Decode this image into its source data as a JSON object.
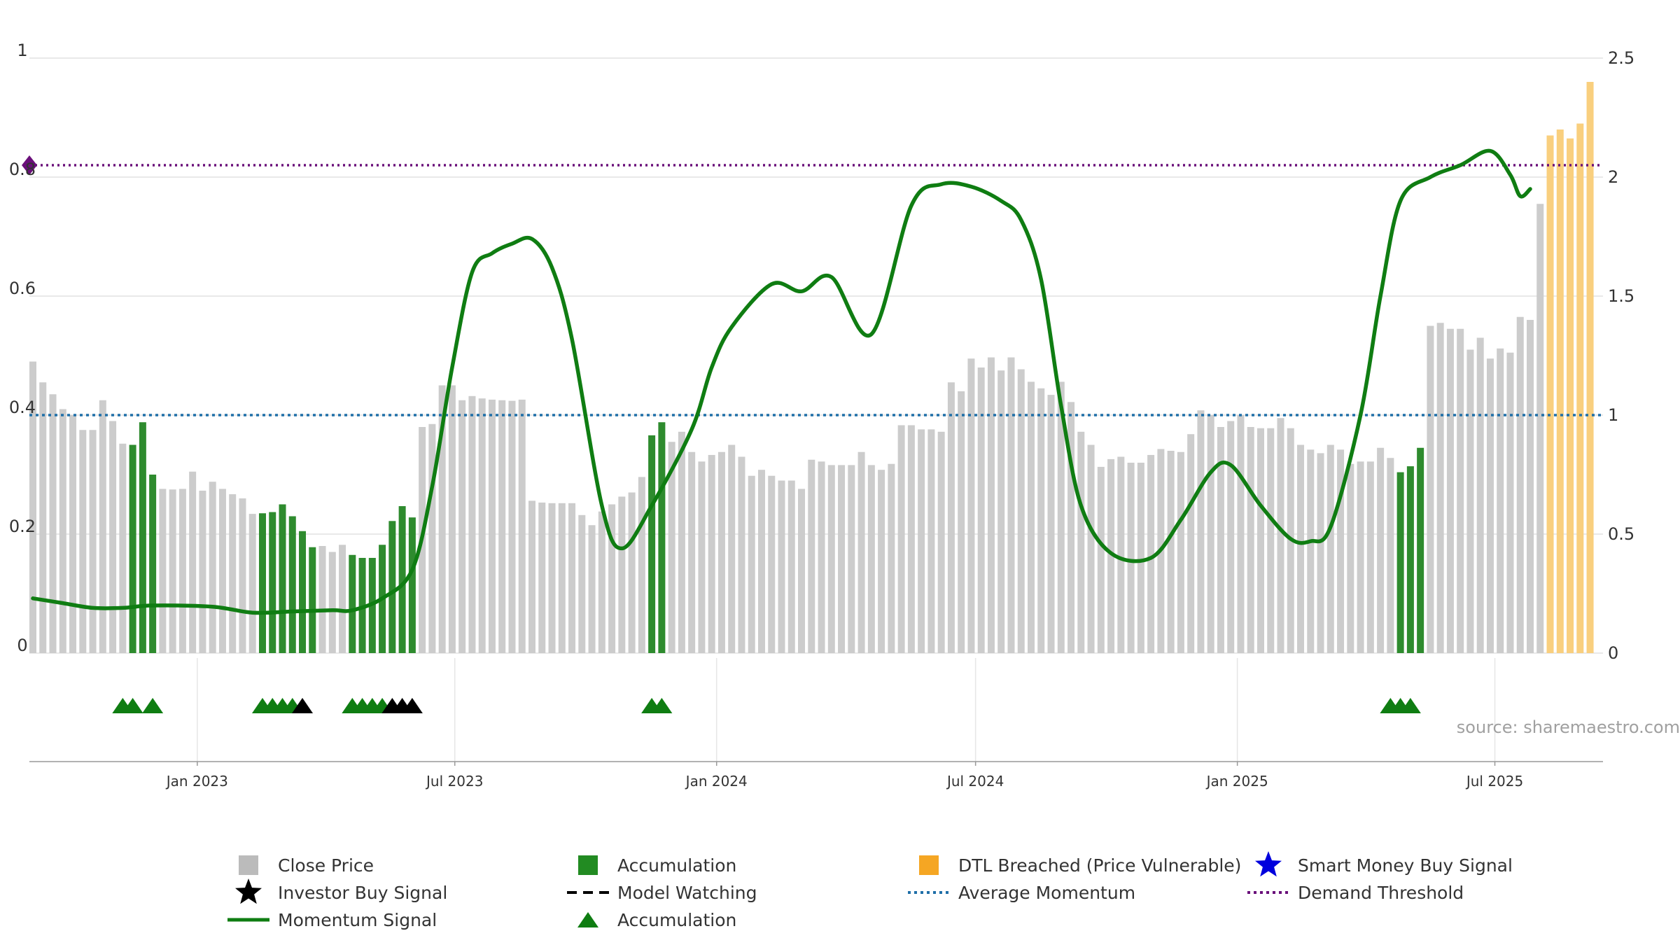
{
  "chart_data": {
    "type": "bar",
    "left_axis": {
      "ylim": [
        0,
        1
      ],
      "ticks": [
        "0",
        "0.2",
        "0.4",
        "0.6",
        "0.8",
        "1"
      ],
      "tick_values": [
        0,
        0.2,
        0.4,
        0.6,
        0.8,
        1.0
      ]
    },
    "right_axis": {
      "ylim": [
        0,
        2.5
      ],
      "ticks": [
        "0",
        "0.5",
        "1",
        "1.5",
        "2",
        "2.5"
      ],
      "tick_values": [
        0,
        0.5,
        1.0,
        1.5,
        2.0,
        2.5
      ]
    },
    "x_axis": {
      "range": [
        "2022-09-05",
        "2025-09-15"
      ],
      "ticks": [
        {
          "date": "2023-01-01",
          "label": "Jan 2023"
        },
        {
          "date": "2023-07-01",
          "label": "Jul 2023"
        },
        {
          "date": "2024-01-01",
          "label": "Jan 2024"
        },
        {
          "date": "2024-07-01",
          "label": "Jul 2024"
        },
        {
          "date": "2025-01-01",
          "label": "Jan 2025"
        },
        {
          "date": "2025-07-01",
          "label": "Jul 2025"
        }
      ]
    },
    "grid": true,
    "series": [
      {
        "name": "Close Price",
        "start_date": "2022-09-05",
        "interval_days": 7,
        "values": [
          0.49,
          0.455,
          0.435,
          0.41,
          0.4,
          0.375,
          0.375,
          0.425,
          0.39,
          0.352,
          0.35,
          0.388,
          0.3,
          0.276,
          0.275,
          0.276,
          0.305,
          0.273,
          0.288,
          0.276,
          0.267,
          0.26,
          0.234,
          0.235,
          0.237,
          0.25,
          0.23,
          0.205,
          0.178,
          0.18,
          0.17,
          0.182,
          0.165,
          0.16,
          0.16,
          0.182,
          0.222,
          0.247,
          0.228,
          0.38,
          0.385,
          0.45,
          0.45,
          0.425,
          0.432,
          0.428,
          0.426,
          0.425,
          0.424,
          0.426,
          0.256,
          0.253,
          0.252,
          0.252,
          0.252,
          0.232,
          0.215,
          0.238,
          0.25,
          0.263,
          0.27,
          0.296,
          0.366,
          0.388,
          0.355,
          0.372,
          0.338,
          0.322,
          0.333,
          0.338,
          0.35,
          0.33,
          0.298,
          0.308,
          0.298,
          0.29,
          0.29,
          0.276,
          0.325,
          0.322,
          0.316,
          0.316,
          0.316,
          0.338,
          0.316,
          0.308,
          0.318,
          0.383,
          0.383,
          0.376,
          0.376,
          0.372,
          0.455,
          0.44,
          0.495,
          0.48,
          0.497,
          0.475,
          0.497,
          0.477,
          0.456,
          0.445,
          0.434,
          0.456,
          0.422,
          0.372,
          0.35,
          0.313,
          0.326,
          0.33,
          0.32,
          0.32,
          0.333,
          0.343,
          0.34,
          0.338,
          0.368,
          0.408,
          0.4,
          0.38,
          0.39,
          0.4,
          0.38,
          0.378,
          0.378,
          0.395,
          0.378,
          0.35,
          0.342,
          0.336,
          0.35,
          0.342,
          0.318,
          0.322,
          0.322,
          0.345,
          0.328,
          0.304,
          0.314,
          0.345,
          0.55,
          0.555,
          0.545,
          0.545,
          0.51,
          0.53,
          0.495,
          0.512,
          0.505,
          0.565,
          0.56,
          0.755,
          0.87,
          0.88,
          0.865,
          0.89,
          0.96
        ],
        "accumulation": [
          10,
          11,
          12,
          23,
          24,
          25,
          26,
          27,
          28,
          32,
          33,
          34,
          35,
          36,
          37,
          38,
          62,
          63,
          137,
          138,
          139
        ],
        "dtl_breached": [
          152,
          153,
          154,
          155,
          156,
          157
        ]
      },
      {
        "name": "Momentum Signal",
        "axis": "right",
        "points": [
          [
            0,
            0.23
          ],
          [
            3,
            0.21
          ],
          [
            6,
            0.19
          ],
          [
            9,
            0.19
          ],
          [
            12,
            0.2
          ],
          [
            18,
            0.195
          ],
          [
            22,
            0.17
          ],
          [
            26,
            0.175
          ],
          [
            30,
            0.18
          ],
          [
            32,
            0.18
          ],
          [
            35,
            0.23
          ],
          [
            38,
            0.35
          ],
          [
            40,
            0.7
          ],
          [
            42,
            1.2
          ],
          [
            44,
            1.6
          ],
          [
            46,
            1.68
          ],
          [
            48,
            1.72
          ],
          [
            50,
            1.74
          ],
          [
            52,
            1.62
          ],
          [
            54,
            1.32
          ],
          [
            57,
            0.62
          ],
          [
            59,
            0.44
          ],
          [
            62,
            0.62
          ],
          [
            66,
            0.94
          ],
          [
            68,
            1.2
          ],
          [
            70,
            1.37
          ],
          [
            74,
            1.55
          ],
          [
            77,
            1.52
          ],
          [
            80,
            1.58
          ],
          [
            84,
            1.34
          ],
          [
            88,
            1.88
          ],
          [
            91,
            1.97
          ],
          [
            94,
            1.96
          ],
          [
            97,
            1.9
          ],
          [
            99,
            1.82
          ],
          [
            101,
            1.57
          ],
          [
            103,
            1.04
          ],
          [
            105,
            0.62
          ],
          [
            108,
            0.42
          ],
          [
            112,
            0.4
          ],
          [
            115,
            0.56
          ],
          [
            118,
            0.76
          ],
          [
            120,
            0.79
          ],
          [
            123,
            0.62
          ],
          [
            126,
            0.48
          ],
          [
            128,
            0.47
          ],
          [
            130,
            0.53
          ],
          [
            133,
            1.0
          ],
          [
            135,
            1.5
          ],
          [
            137,
            1.9
          ],
          [
            140,
            2.0
          ],
          [
            143,
            2.05
          ],
          [
            146,
            2.11
          ],
          [
            148,
            2.01
          ],
          [
            149,
            1.92
          ],
          [
            150,
            1.95
          ]
        ]
      },
      {
        "name": "Average Momentum",
        "axis": "right",
        "value": 1.0
      },
      {
        "name": "Demand Threshold",
        "axis": "left",
        "value": 0.82
      }
    ],
    "markers": {
      "accumulation_triangles": [
        9,
        10,
        12,
        23,
        24,
        25,
        26,
        32,
        33,
        34,
        35,
        62,
        63,
        136,
        137,
        138
      ],
      "investor_buy_stars": [
        27,
        36,
        37,
        38
      ]
    },
    "source_text": "source: sharemaestro.com",
    "legend_position": "bottom",
    "legend": [
      {
        "label": "Close Price",
        "symbol": "square",
        "color": "#bbbbbb"
      },
      {
        "label": "Accumulation",
        "symbol": "square",
        "color": "#228b22"
      },
      {
        "label": "DTL Breached (Price Vulnerable)",
        "symbol": "square",
        "color": "#f5a623"
      },
      {
        "label": "Smart Money Buy Signal",
        "symbol": "star",
        "color": "#0000dd"
      },
      {
        "label": "Investor Buy Signal",
        "symbol": "star",
        "color": "#000000"
      },
      {
        "label": "Model Watching",
        "symbol": "dash",
        "color": "#000000"
      },
      {
        "label": "Average Momentum",
        "symbol": "dotted-line",
        "color": "#1f6fa8"
      },
      {
        "label": "Demand Threshold",
        "symbol": "dotted-line",
        "color": "#6a0f7a"
      },
      {
        "label": "Momentum Signal",
        "symbol": "line",
        "color": "#0f7d12"
      },
      {
        "label": "Accumulation",
        "symbol": "triangle",
        "color": "#0f7d12"
      }
    ],
    "colors": {
      "close": "#cccccc",
      "accumulation": "#2e8b2e",
      "dtl": "#f9cf7e",
      "momentum": "#0f7d12",
      "average": "#1f6fa8",
      "threshold": "#6a0f7a",
      "grid": "#e6e6e6"
    }
  }
}
